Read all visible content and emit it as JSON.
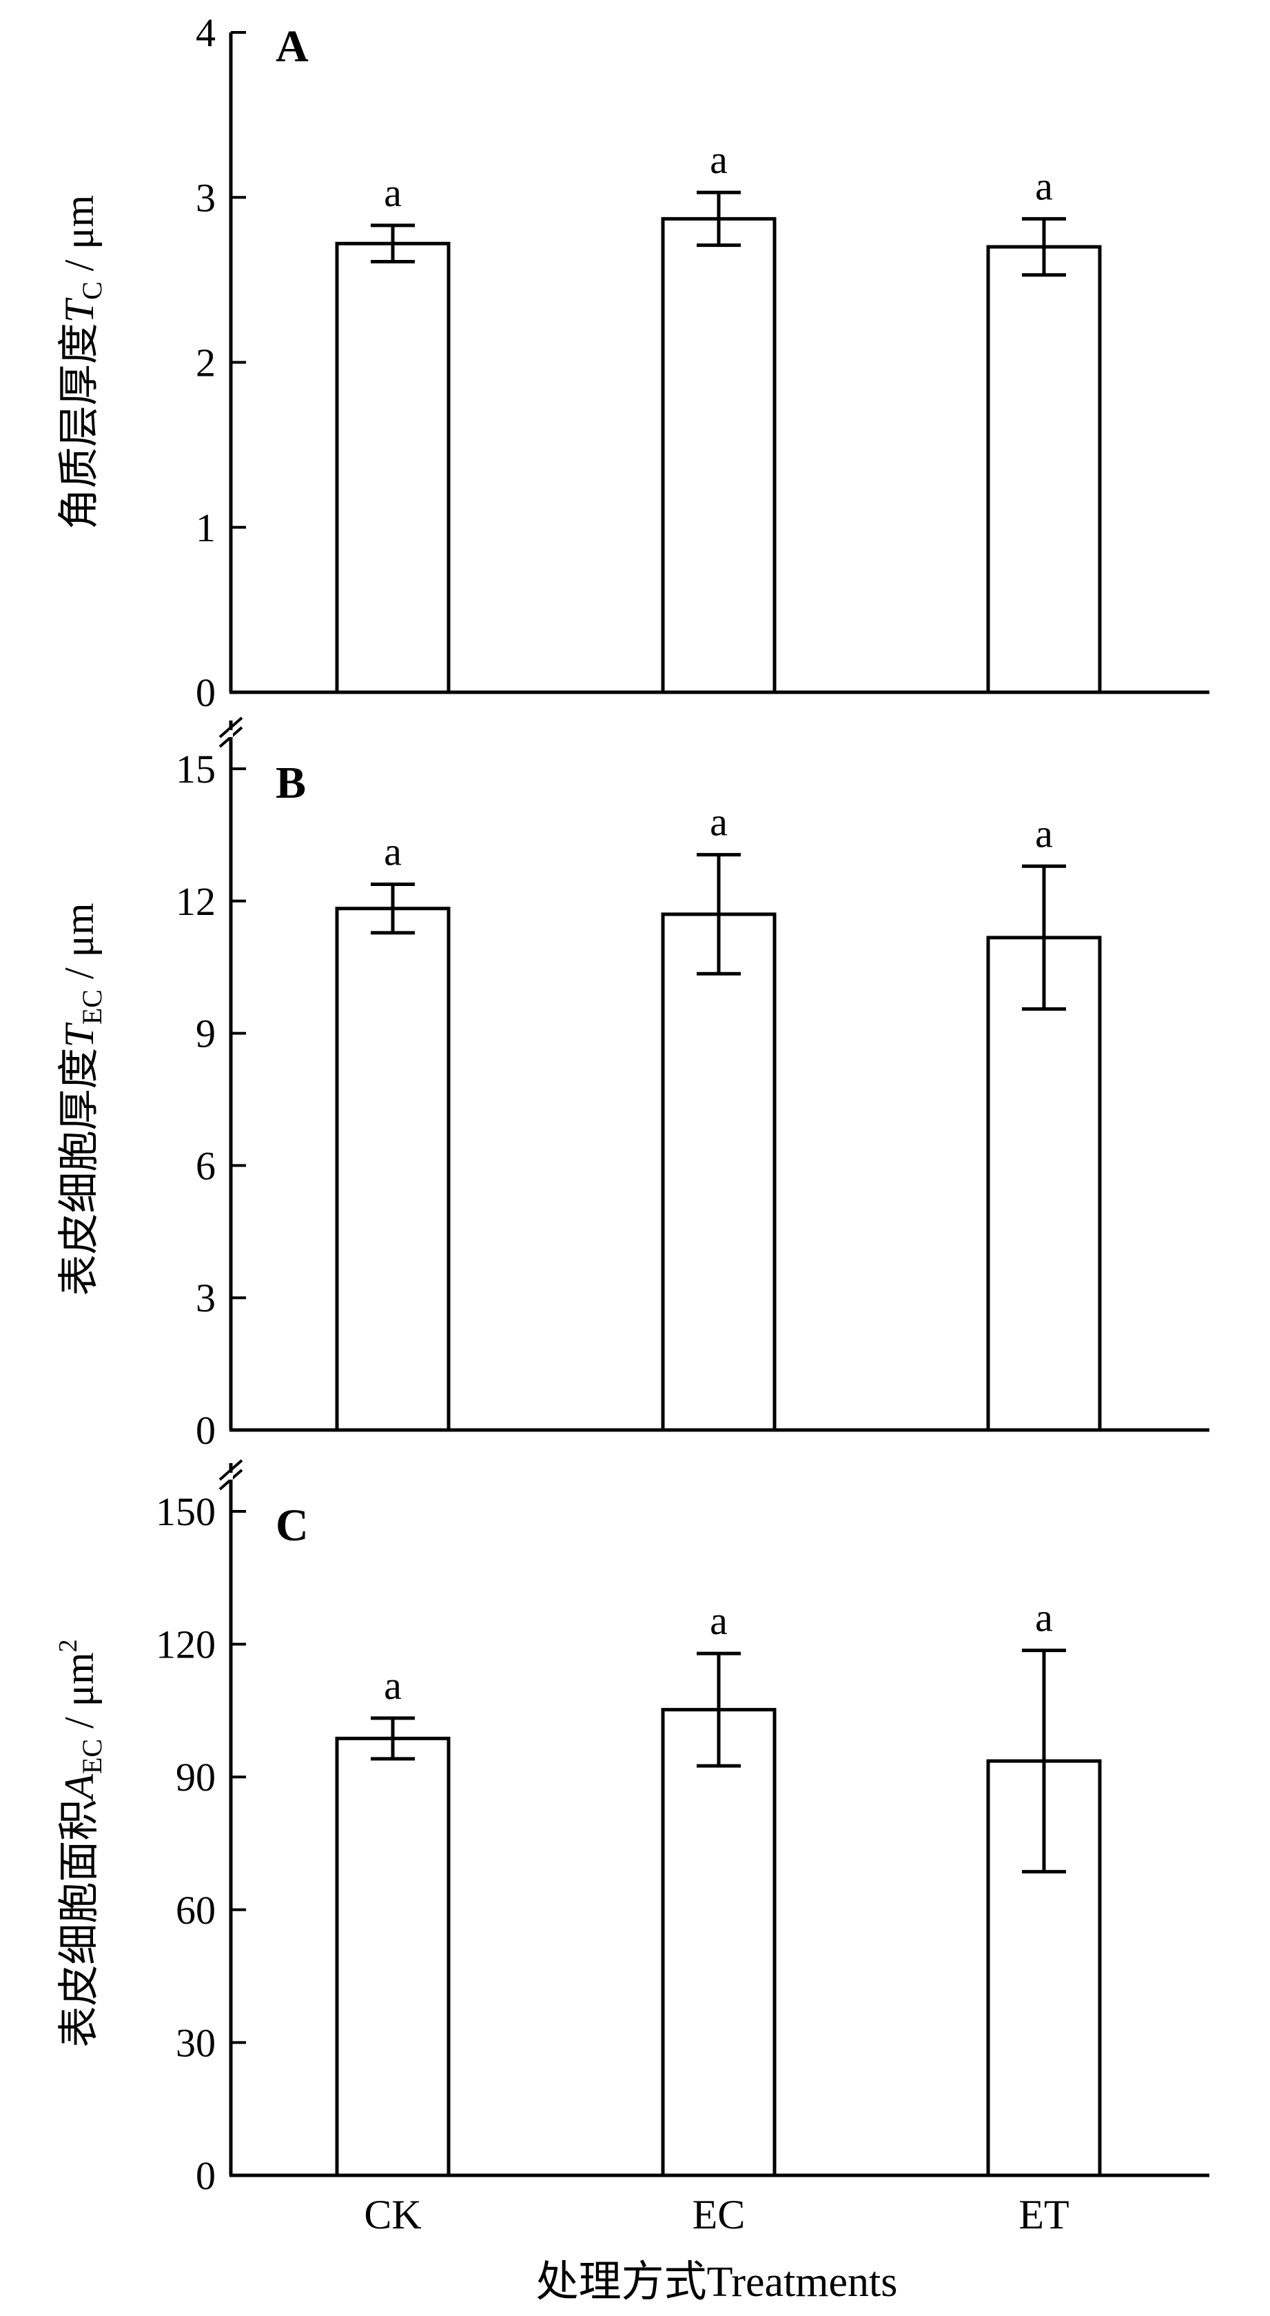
{
  "chart_data": [
    {
      "panel": "A",
      "type": "bar",
      "categories": [
        "CK",
        "EC",
        "ET"
      ],
      "values": [
        2.72,
        2.87,
        2.7
      ],
      "errors": [
        0.11,
        0.16,
        0.17
      ],
      "sig_labels": [
        "a",
        "a",
        "a"
      ],
      "ylabel_zh": "角质层厚度",
      "ylabel_sym": "T",
      "ylabel_sub": "C",
      "ylabel_unit": " / μm",
      "ylabel_sup": "",
      "ylim": [
        0,
        4
      ],
      "yticks": [
        0,
        1,
        2,
        3,
        4
      ]
    },
    {
      "panel": "B",
      "type": "bar",
      "categories": [
        "CK",
        "EC",
        "ET"
      ],
      "values": [
        11.83,
        11.7,
        11.17
      ],
      "errors": [
        0.55,
        1.35,
        1.62
      ],
      "sig_labels": [
        "a",
        "a",
        "a"
      ],
      "ylabel_zh": "表皮细胞厚度",
      "ylabel_sym": "T",
      "ylabel_sub": "EC",
      "ylabel_unit": " / μm",
      "ylabel_sup": "",
      "ylim": [
        0,
        15
      ],
      "yticks": [
        0,
        3,
        6,
        9,
        12,
        15
      ]
    },
    {
      "panel": "C",
      "type": "bar",
      "categories": [
        "CK",
        "EC",
        "ET"
      ],
      "values": [
        98.7,
        105.2,
        93.6
      ],
      "errors": [
        4.6,
        12.7,
        25.0
      ],
      "sig_labels": [
        "a",
        "a",
        "a"
      ],
      "ylabel_zh": "表皮细胞面积",
      "ylabel_sym": "A",
      "ylabel_sub": "EC",
      "ylabel_unit": " / μm",
      "ylabel_sup": "2",
      "ylim": [
        0,
        150
      ],
      "yticks": [
        0,
        30,
        60,
        90,
        120,
        150
      ]
    }
  ],
  "xlabel": "处理方式Treatments"
}
